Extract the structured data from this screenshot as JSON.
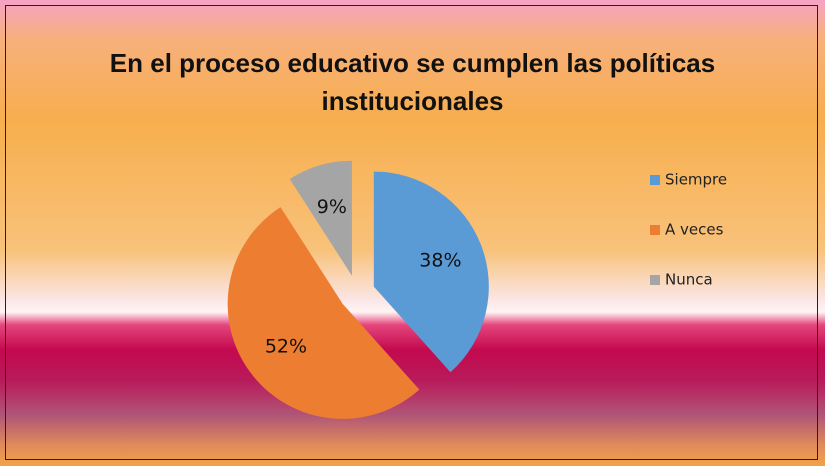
{
  "chart_data": {
    "type": "pie",
    "title": "En el proceso educativo se cumplen las políticas institucionales",
    "categories": [
      "Siempre",
      "A veces",
      "Nunca"
    ],
    "values": [
      38,
      52,
      9
    ],
    "value_labels": [
      "38%",
      "52%",
      "9%"
    ],
    "colors": [
      "#5b9bd5",
      "#ed7d31",
      "#a5a5a5"
    ],
    "legend": "right"
  }
}
